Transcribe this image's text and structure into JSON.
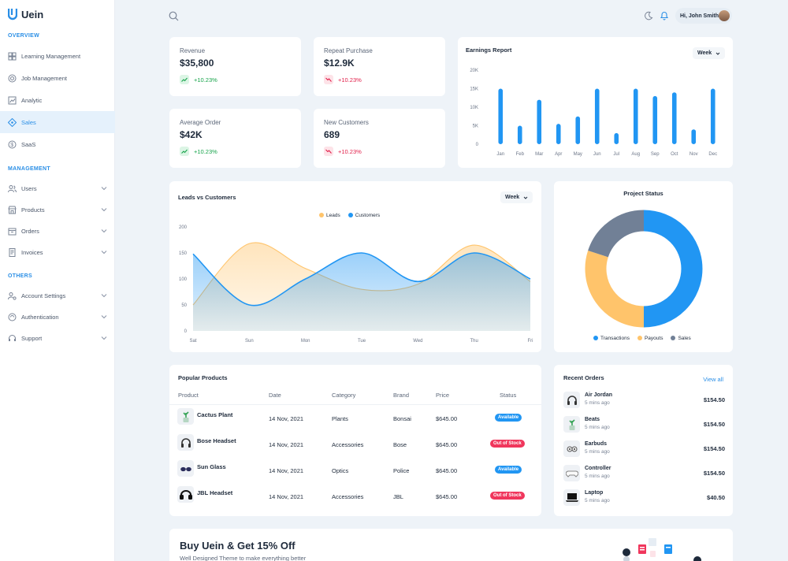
{
  "brand": {
    "name": "Uein"
  },
  "sidebar": {
    "sections": [
      {
        "title": "OVERVIEW",
        "items": [
          {
            "label": "Learning Management",
            "icon": "dashboard-icon"
          },
          {
            "label": "Job Management",
            "icon": "target-icon"
          },
          {
            "label": "Analytic",
            "icon": "chart-icon"
          },
          {
            "label": "Sales",
            "icon": "diamond-icon",
            "active": true
          },
          {
            "label": "SaaS",
            "icon": "dollar-icon"
          }
        ]
      },
      {
        "title": "MANAGEMENT",
        "items": [
          {
            "label": "Users",
            "icon": "users-icon"
          },
          {
            "label": "Products",
            "icon": "store-icon"
          },
          {
            "label": "Orders",
            "icon": "box-icon"
          },
          {
            "label": "Invoices",
            "icon": "invoice-icon"
          }
        ]
      },
      {
        "title": "OTHERS",
        "items": [
          {
            "label": "Account Settings",
            "icon": "user-settings-icon"
          },
          {
            "label": "Authentication",
            "icon": "lock-icon"
          },
          {
            "label": "Support",
            "icon": "headset-icon"
          }
        ]
      }
    ]
  },
  "topbar": {
    "greeting": "Hi, John Smith"
  },
  "stats": [
    {
      "label": "Revenue",
      "value": "$35,800",
      "change": "+10.23%",
      "trend": "up"
    },
    {
      "label": "Repeat Purchase",
      "value": "$12.9K",
      "change": "+10.23%",
      "trend": "down"
    },
    {
      "label": "Average Order",
      "value": "$42K",
      "change": "+10.23%",
      "trend": "up"
    },
    {
      "label": "New Customers",
      "value": "689",
      "change": "+10.23%",
      "trend": "down"
    }
  ],
  "earnings": {
    "title": "Earnings Report",
    "period": "Week"
  },
  "leads": {
    "title": "Leads vs Customers",
    "period": "Week"
  },
  "project": {
    "title": "Project Status"
  },
  "chart_data": [
    {
      "type": "bar",
      "title": "Earnings Report",
      "categories": [
        "Jan",
        "Feb",
        "Mar",
        "Apr",
        "May",
        "Jun",
        "Jul",
        "Aug",
        "Sep",
        "Oct",
        "Nov",
        "Dec"
      ],
      "values": [
        15000,
        5000,
        12000,
        5500,
        7500,
        15000,
        3000,
        15000,
        13000,
        14000,
        4000,
        15000
      ],
      "yticks": [
        "0",
        "5K",
        "10K",
        "15K",
        "20K"
      ],
      "ylim": [
        0,
        20000
      ],
      "color": "#2196f3"
    },
    {
      "type": "area",
      "title": "Leads vs Customers",
      "categories": [
        "Sat",
        "Sun",
        "Mon",
        "Tue",
        "Wed",
        "Thu",
        "Fri"
      ],
      "yticks": [
        "0",
        "50",
        "100",
        "150",
        "200"
      ],
      "ylim": [
        0,
        200
      ],
      "series": [
        {
          "name": "Leads",
          "color": "#ffc46b",
          "values": [
            50,
            168,
            120,
            80,
            90,
            165,
            95
          ]
        },
        {
          "name": "Customers",
          "color": "#2196f3",
          "values": [
            148,
            50,
            100,
            150,
            95,
            150,
            100
          ]
        }
      ]
    },
    {
      "type": "pie",
      "title": "Project Status",
      "series": [
        {
          "name": "Transactions",
          "value": 50,
          "color": "#2196f3"
        },
        {
          "name": "Payouts",
          "value": 30,
          "color": "#ffc46b"
        },
        {
          "name": "Sales",
          "value": 20,
          "color": "#718096"
        }
      ]
    }
  ],
  "products": {
    "title": "Popular Products",
    "headers": {
      "product": "Product",
      "date": "Date",
      "category": "Category",
      "brand": "Brand",
      "price": "Price",
      "status": "Status"
    },
    "rows": [
      {
        "name": "Cactus Plant",
        "date": "14 Nov, 2021",
        "category": "Plants",
        "brand": "Bonsai",
        "price": "$645.00",
        "status": "Available",
        "status_color": "#2196f3",
        "icon": "plant-icon"
      },
      {
        "name": "Bose Headset",
        "date": "14 Nov, 2021",
        "category": "Accessories",
        "brand": "Bose",
        "price": "$645.00",
        "status": "Out of Stock",
        "status_color": "#f0365c",
        "icon": "headphones-icon"
      },
      {
        "name": "Sun Glass",
        "date": "14 Nov, 2021",
        "category": "Optics",
        "brand": "Police",
        "price": "$645.00",
        "status": "Available",
        "status_color": "#2196f3",
        "icon": "glasses-icon"
      },
      {
        "name": "JBL Headset",
        "date": "14 Nov, 2021",
        "category": "Accessories",
        "brand": "JBL",
        "price": "$645.00",
        "status": "Out of Stock",
        "status_color": "#f0365c",
        "icon": "headset-icon"
      }
    ]
  },
  "orders": {
    "title": "Recent Orders",
    "view_all": "View all",
    "items": [
      {
        "name": "Air Jordan",
        "time": "5 mins ago",
        "price": "$154.50",
        "icon": "headphones-icon"
      },
      {
        "name": "Beats",
        "time": "5 mins ago",
        "price": "$154.50",
        "icon": "plant-icon"
      },
      {
        "name": "Earbuds",
        "time": "5 mins ago",
        "price": "$154.50",
        "icon": "earbuds-icon"
      },
      {
        "name": "Controller",
        "time": "5 mins ago",
        "price": "$154.50",
        "icon": "controller-icon"
      },
      {
        "name": "Laptop",
        "time": "5 mins ago",
        "price": "$40.50",
        "icon": "laptop-icon"
      }
    ]
  },
  "promo": {
    "title": "Buy Uein & Get 15% Off",
    "subtitle": "Well Designed Theme to make everything better"
  }
}
